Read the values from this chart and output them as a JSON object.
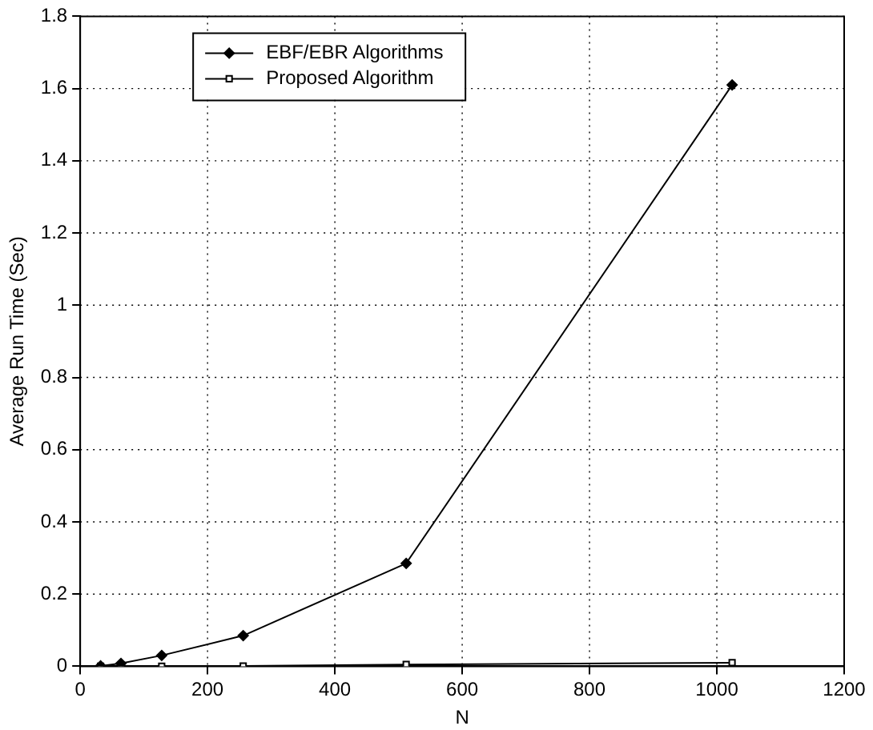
{
  "chart_data": {
    "type": "line",
    "xlabel": "N",
    "ylabel": "Average Run Time (Sec)",
    "x": [
      32,
      64,
      128,
      256,
      512,
      1024
    ],
    "series": [
      {
        "name": "EBF/EBR Algorithms",
        "color": "#000000",
        "marker": "diamond",
        "values": [
          0.001,
          0.008,
          0.03,
          0.085,
          0.285,
          1.61
        ]
      },
      {
        "name": "Proposed Algorithm",
        "color": "#000000",
        "marker": "square",
        "values": [
          0,
          0,
          0,
          0.001,
          0.005,
          0.01
        ]
      }
    ],
    "xlim": [
      0,
      1200
    ],
    "xticks": [
      0,
      200,
      400,
      600,
      800,
      1000,
      1200
    ],
    "ylim": [
      0,
      1.8
    ],
    "yticks": [
      0,
      0.2,
      0.4,
      0.6,
      0.8,
      1,
      1.2,
      1.4,
      1.6,
      1.8
    ],
    "grid": true,
    "legend": "top left",
    "line_style": "solid"
  }
}
